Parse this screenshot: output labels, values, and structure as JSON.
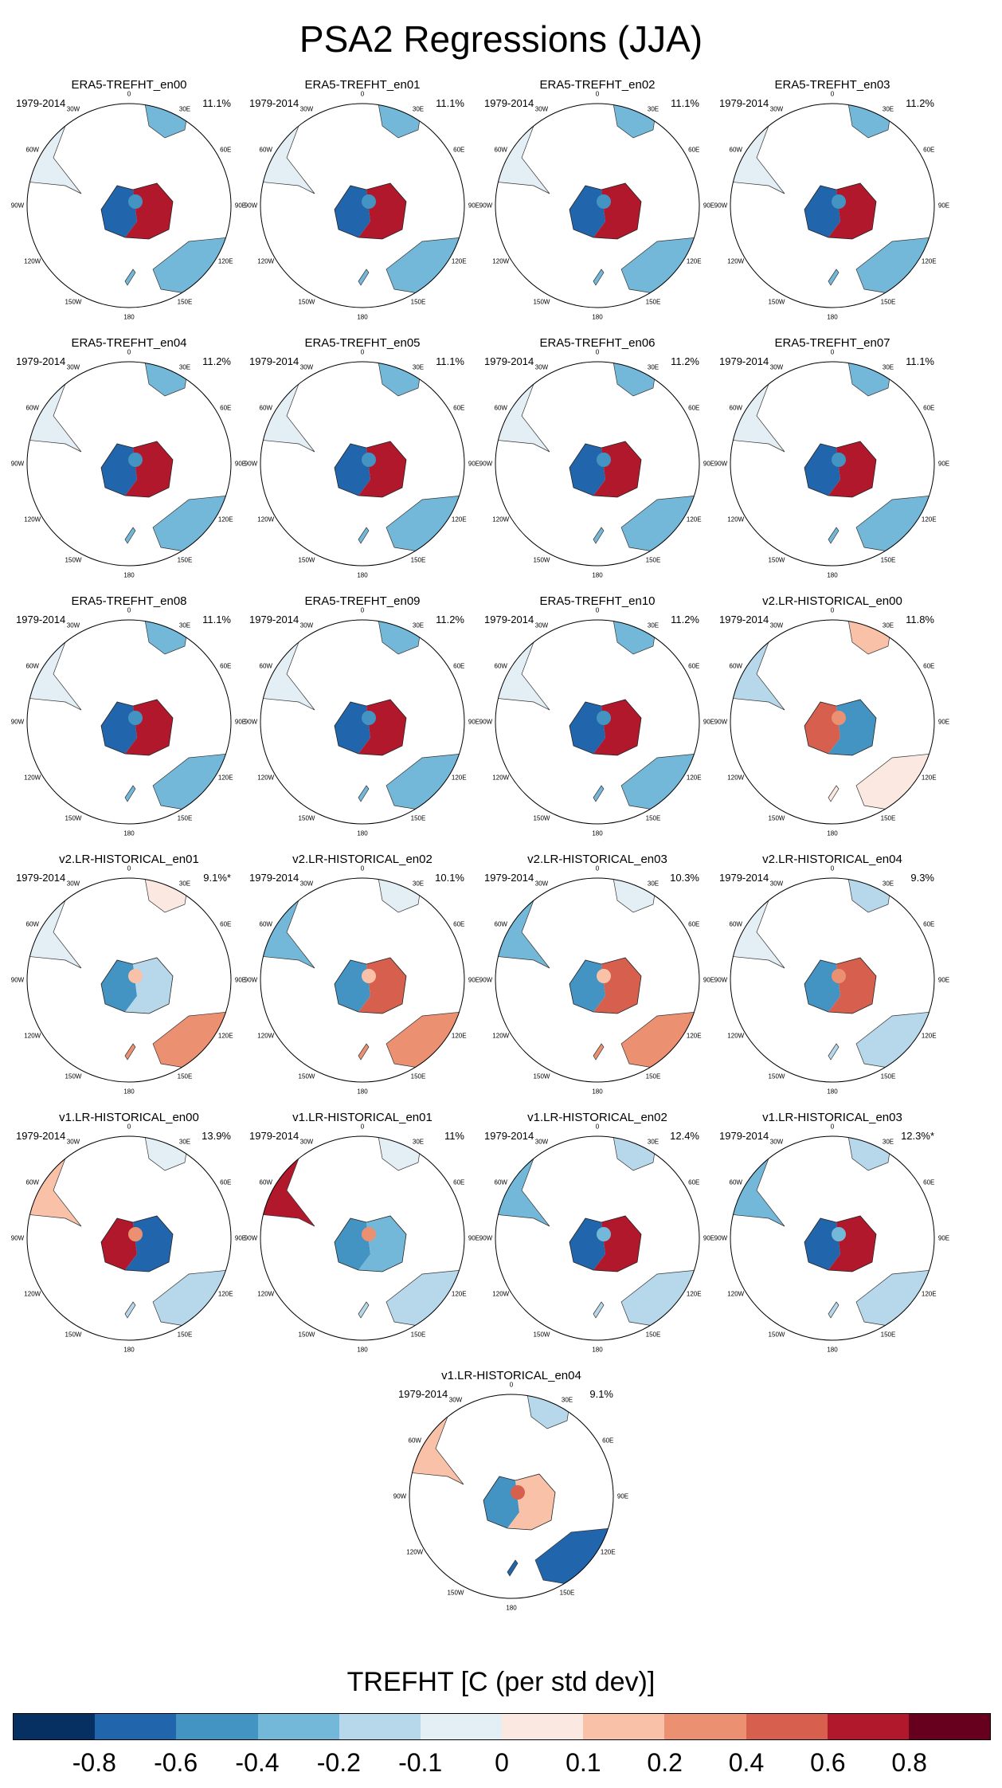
{
  "title": "PSA2 Regressions (JJA)",
  "years_label": "1979-2014",
  "lon_labels": [
    "0",
    "30E",
    "60E",
    "90E",
    "120E",
    "150E",
    "180",
    "150W",
    "120W",
    "90W",
    "60W",
    "30W"
  ],
  "panels": [
    {
      "title": "ERA5-TREFHT_en00",
      "pct": "11.1%",
      "pattern": "era5"
    },
    {
      "title": "ERA5-TREFHT_en01",
      "pct": "11.1%",
      "pattern": "era5"
    },
    {
      "title": "ERA5-TREFHT_en02",
      "pct": "11.1%",
      "pattern": "era5"
    },
    {
      "title": "ERA5-TREFHT_en03",
      "pct": "11.2%",
      "pattern": "era5"
    },
    {
      "title": "ERA5-TREFHT_en04",
      "pct": "11.2%",
      "pattern": "era5"
    },
    {
      "title": "ERA5-TREFHT_en05",
      "pct": "11.1%",
      "pattern": "era5"
    },
    {
      "title": "ERA5-TREFHT_en06",
      "pct": "11.2%",
      "pattern": "era5"
    },
    {
      "title": "ERA5-TREFHT_en07",
      "pct": "11.1%",
      "pattern": "era5"
    },
    {
      "title": "ERA5-TREFHT_en08",
      "pct": "11.1%",
      "pattern": "era5"
    },
    {
      "title": "ERA5-TREFHT_en09",
      "pct": "11.2%",
      "pattern": "era5"
    },
    {
      "title": "ERA5-TREFHT_en10",
      "pct": "11.2%",
      "pattern": "era5"
    },
    {
      "title": "v2.LR-HISTORICAL_en00",
      "pct": "11.8%",
      "pattern": "v2a"
    },
    {
      "title": "v2.LR-HISTORICAL_en01",
      "pct": "9.1%*",
      "pattern": "v2b"
    },
    {
      "title": "v2.LR-HISTORICAL_en02",
      "pct": "10.1%",
      "pattern": "v2c"
    },
    {
      "title": "v2.LR-HISTORICAL_en03",
      "pct": "10.3%",
      "pattern": "v2c"
    },
    {
      "title": "v2.LR-HISTORICAL_en04",
      "pct": "9.3%",
      "pattern": "v2d"
    },
    {
      "title": "v1.LR-HISTORICAL_en00",
      "pct": "13.9%",
      "pattern": "v1a"
    },
    {
      "title": "v1.LR-HISTORICAL_en01",
      "pct": "11%",
      "pattern": "v1b"
    },
    {
      "title": "v1.LR-HISTORICAL_en02",
      "pct": "12.4%",
      "pattern": "v1c"
    },
    {
      "title": "v1.LR-HISTORICAL_en03",
      "pct": "12.3%*",
      "pattern": "v1c"
    },
    {
      "title": "v1.LR-HISTORICAL_en04",
      "pct": "9.1%",
      "pattern": "v1d"
    }
  ],
  "colorbar": {
    "title": "TREFHT [C (per std dev)]",
    "ticks": [
      "-0.8",
      "-0.6",
      "-0.4",
      "-0.2",
      "-0.1",
      "0",
      "0.1",
      "0.2",
      "0.4",
      "0.6",
      "0.8"
    ],
    "colors": [
      "#053061",
      "#2166ac",
      "#4393c3",
      "#74b8d9",
      "#b7d7ea",
      "#e4eef5",
      "#fbe8e0",
      "#f9c2a8",
      "#ec9072",
      "#d6604d",
      "#b2182b",
      "#67001f"
    ]
  }
}
